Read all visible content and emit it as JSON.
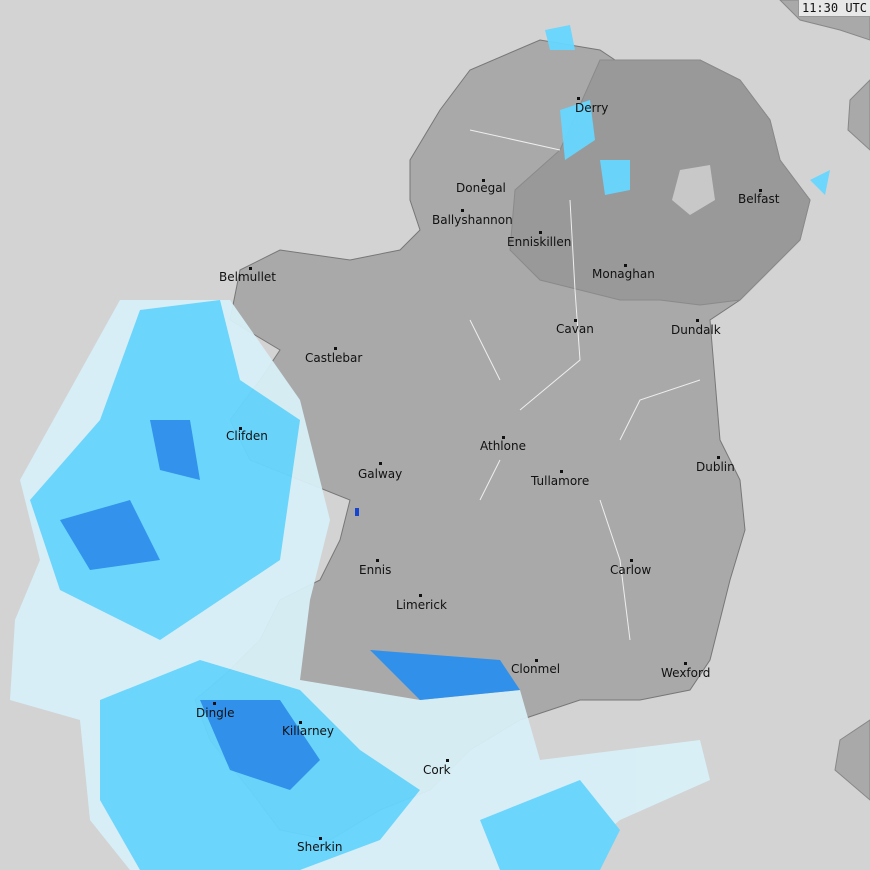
{
  "timestamp": "11:30 UTC",
  "colors": {
    "sea": "#d3d3d3",
    "land": "#a9a9a9",
    "northern_ireland": "#999999",
    "rain_light": "#d8f0f8",
    "rain_moderate": "#66d6ff",
    "rain_heavy": "#2a8fee",
    "rain_intense": "#1040d0"
  },
  "cities": [
    {
      "name": "Derry"
    },
    {
      "name": "Donegal"
    },
    {
      "name": "Belfast"
    },
    {
      "name": "Ballyshannon"
    },
    {
      "name": "Enniskillen"
    },
    {
      "name": "Monaghan"
    },
    {
      "name": "Belmullet"
    },
    {
      "name": "Cavan"
    },
    {
      "name": "Dundalk"
    },
    {
      "name": "Castlebar"
    },
    {
      "name": "Clifden"
    },
    {
      "name": "Athlone"
    },
    {
      "name": "Dublin"
    },
    {
      "name": "Galway"
    },
    {
      "name": "Tullamore"
    },
    {
      "name": "Ennis"
    },
    {
      "name": "Carlow"
    },
    {
      "name": "Limerick"
    },
    {
      "name": "Clonmel"
    },
    {
      "name": "Wexford"
    },
    {
      "name": "Dingle"
    },
    {
      "name": "Killarney"
    },
    {
      "name": "Cork"
    },
    {
      "name": "Sherkin"
    }
  ]
}
